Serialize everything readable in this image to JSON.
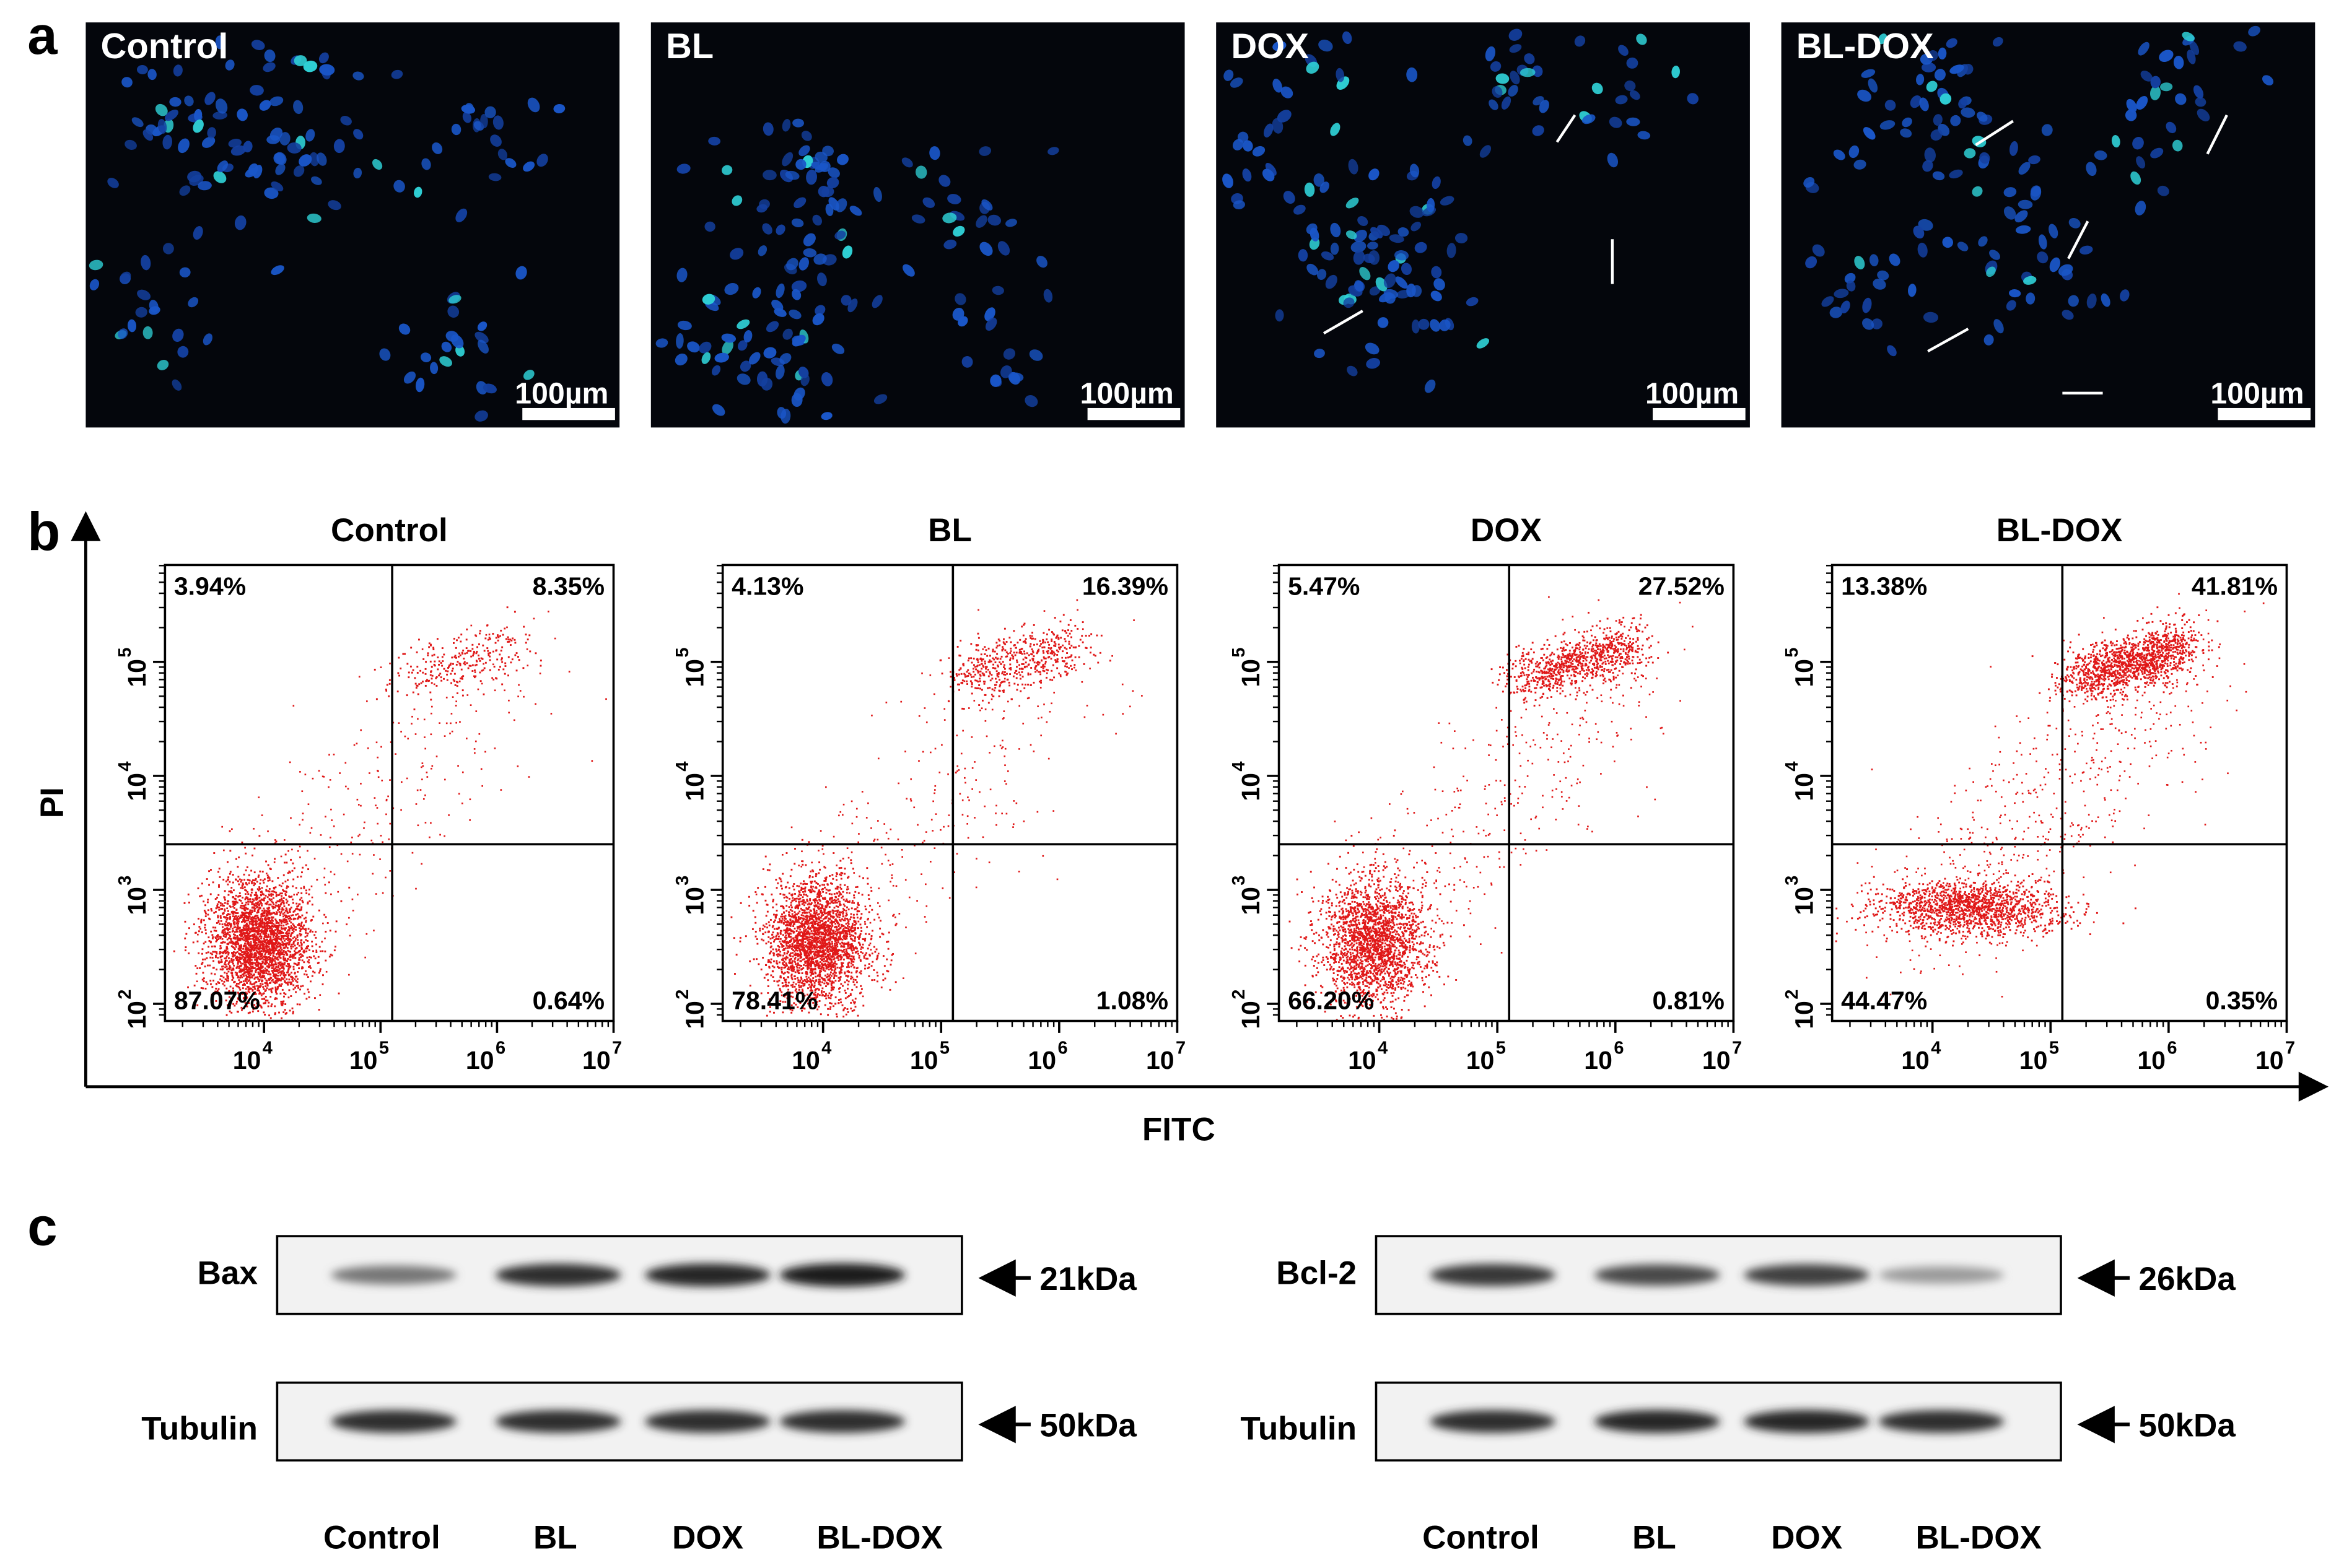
{
  "panel_a": {
    "letter": "a",
    "tiles": [
      {
        "title": "Control",
        "scalebar": "100µm"
      },
      {
        "title": "BL",
        "scalebar": "100µm"
      },
      {
        "title": "DOX",
        "scalebar": "100µm"
      },
      {
        "title": "BL-DOX",
        "scalebar": "100µm"
      }
    ]
  },
  "panel_b": {
    "letter": "b",
    "xlabel": "FITC",
    "ylabel": "PI",
    "x_ticks": [
      "4",
      "5",
      "6",
      "7"
    ],
    "y_ticks": [
      "2",
      "3",
      "4",
      "5"
    ],
    "tick_base": "10",
    "plots": [
      {
        "title": "Control",
        "quadrants": {
          "ul": "3.94%",
          "ur": "8.35%",
          "ll": "87.07%",
          "lr": "0.64%"
        }
      },
      {
        "title": "BL",
        "quadrants": {
          "ul": "4.13%",
          "ur": "16.39%",
          "ll": "78.41%",
          "lr": "1.08%"
        }
      },
      {
        "title": "DOX",
        "quadrants": {
          "ul": "5.47%",
          "ur": "27.52%",
          "ll": "66.20%",
          "lr": "0.81%"
        }
      },
      {
        "title": "BL-DOX",
        "quadrants": {
          "ul": "13.38%",
          "ur": "41.81%",
          "ll": "44.47%",
          "lr": "0.35%"
        }
      }
    ]
  },
  "panel_c": {
    "letter": "c",
    "blots": [
      {
        "target": "Bax",
        "target_size": "21kDa",
        "loading": "Tubulin",
        "loading_size": "50kDa",
        "target_band_strength": [
          0.45,
          0.85,
          0.9,
          0.95
        ],
        "loading_band_strength": [
          0.85,
          0.85,
          0.85,
          0.85
        ]
      },
      {
        "target": "Bcl-2",
        "target_size": "26kDa",
        "loading": "Tubulin",
        "loading_size": "50kDa",
        "target_band_strength": [
          0.8,
          0.7,
          0.75,
          0.25
        ],
        "loading_band_strength": [
          0.85,
          0.9,
          0.9,
          0.85
        ]
      }
    ],
    "lanes": [
      "Control",
      "BL",
      "DOX",
      "BL-DOX"
    ]
  },
  "chart_data": [
    {
      "type": "scatter",
      "title": "Control",
      "xlabel": "FITC",
      "ylabel": "PI",
      "log_axes": true,
      "quadrant_percentages": {
        "upper_left": 3.94,
        "upper_right": 8.35,
        "lower_left": 87.07,
        "lower_right": 0.64
      }
    },
    {
      "type": "scatter",
      "title": "BL",
      "xlabel": "FITC",
      "ylabel": "PI",
      "log_axes": true,
      "quadrant_percentages": {
        "upper_left": 4.13,
        "upper_right": 16.39,
        "lower_left": 78.41,
        "lower_right": 1.08
      }
    },
    {
      "type": "scatter",
      "title": "DOX",
      "xlabel": "FITC",
      "ylabel": "PI",
      "log_axes": true,
      "quadrant_percentages": {
        "upper_left": 5.47,
        "upper_right": 27.52,
        "lower_left": 66.2,
        "lower_right": 0.81
      }
    },
    {
      "type": "scatter",
      "title": "BL-DOX",
      "xlabel": "FITC",
      "ylabel": "PI",
      "log_axes": true,
      "quadrant_percentages": {
        "upper_left": 13.38,
        "upper_right": 41.81,
        "lower_left": 44.47,
        "lower_right": 0.35
      }
    }
  ]
}
